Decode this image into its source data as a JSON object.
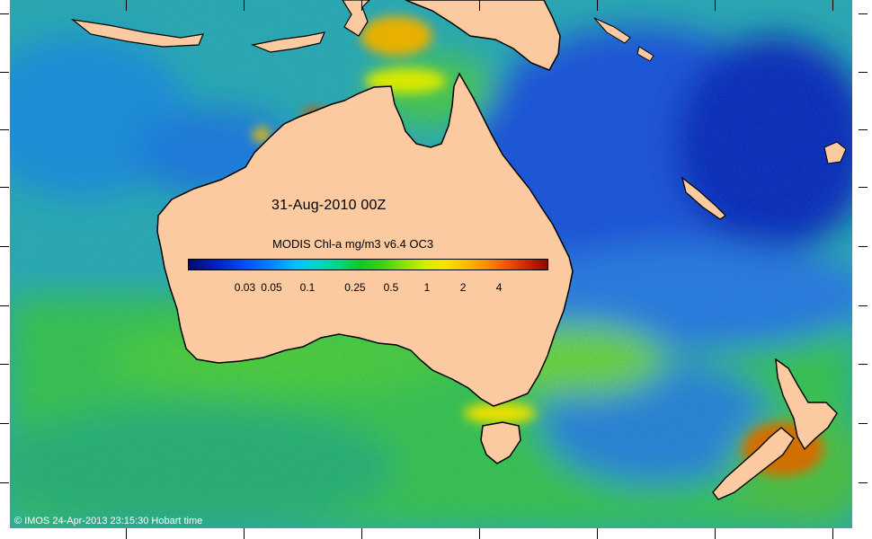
{
  "map": {
    "title": "31-Aug-2010 00Z",
    "legend": {
      "title": "MODIS Chl-a mg/m3 v6.4 OC3",
      "ticks": [
        {
          "label": "0.03",
          "value": 0.03
        },
        {
          "label": "0.05",
          "value": 0.05
        },
        {
          "label": "0.1",
          "value": 0.1
        },
        {
          "label": "0.25",
          "value": 0.25
        },
        {
          "label": "0.5",
          "value": 0.5
        },
        {
          "label": "1",
          "value": 1
        },
        {
          "label": "2",
          "value": 2
        },
        {
          "label": "4",
          "value": 4
        }
      ],
      "colors": {
        "low": "#000a6e",
        "mid": "#10c820",
        "high": "#8c0a00"
      }
    },
    "credit": "© IMOS 24-Apr-2013 23:15:30 Hobart time",
    "colors": {
      "land": "#fccaa0",
      "coast": "#000000",
      "ocean_deep": "#1c3fd0",
      "ocean_mid": "#22a6b8",
      "ocean_green": "#34c24a"
    }
  }
}
